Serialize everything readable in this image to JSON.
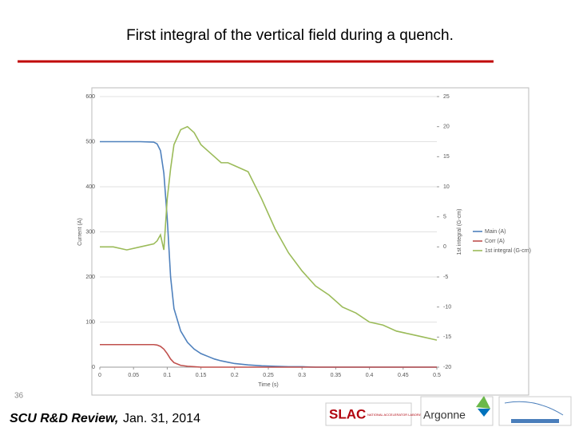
{
  "slide": {
    "title": "First integral of the vertical field during a quench.",
    "page_number": "36",
    "footer_label": "SCU R&D Review,",
    "footer_date": "Jan. 31, 2014",
    "logos": [
      "SLAC",
      "NATIONAL ACCELERATOR LABORATORY",
      "Argonne"
    ]
  },
  "chart_data": {
    "type": "line",
    "x_label": "Time (s)",
    "y_label": "Current (A)",
    "y2_label": "1st integral (G-cm)",
    "x": [
      0,
      0.02,
      0.04,
      0.06,
      0.08,
      0.085,
      0.09,
      0.095,
      0.1,
      0.105,
      0.11,
      0.12,
      0.13,
      0.14,
      0.15,
      0.16,
      0.17,
      0.18,
      0.19,
      0.2,
      0.22,
      0.24,
      0.26,
      0.28,
      0.3,
      0.32,
      0.34,
      0.36,
      0.38,
      0.4,
      0.42,
      0.44,
      0.46,
      0.48,
      0.5
    ],
    "series": [
      {
        "name": "Main (A)",
        "color": "#4f81bd",
        "axis": "y",
        "values": [
          500,
          500,
          500,
          500,
          499,
          495,
          480,
          430,
          330,
          200,
          130,
          80,
          55,
          40,
          30,
          24,
          18,
          14,
          11,
          8,
          5,
          3,
          2,
          1,
          1,
          0,
          0,
          0,
          0,
          0,
          0,
          0,
          0,
          0,
          0
        ]
      },
      {
        "name": "Corr (A)",
        "color": "#c0504d",
        "axis": "y",
        "values": [
          50,
          50,
          50,
          50,
          50,
          49,
          46,
          40,
          30,
          18,
          10,
          4,
          2,
          1,
          0,
          0,
          0,
          0,
          0,
          0,
          0,
          0,
          0,
          0,
          0,
          0,
          0,
          0,
          0,
          0,
          0,
          0,
          0,
          0,
          0
        ]
      },
      {
        "name": "1st integral (G-cm)",
        "color": "#9bbb59",
        "axis": "y2",
        "values": [
          0,
          0,
          -0.5,
          0,
          0.5,
          1,
          2,
          -0.5,
          8,
          13,
          17,
          19.5,
          20,
          19,
          17,
          16,
          15,
          14,
          14,
          13.5,
          12.5,
          8,
          3,
          -1,
          -4,
          -6.5,
          -8,
          -10,
          -11,
          -12.5,
          -13,
          -14,
          -14.5,
          -15,
          -15.5
        ]
      }
    ],
    "xlim": [
      0,
      0.5
    ],
    "xticks": [
      0,
      0.05,
      0.1,
      0.15,
      0.2,
      0.25,
      0.3,
      0.35,
      0.4,
      0.45,
      0.5
    ],
    "ylim": [
      0,
      600
    ],
    "yticks": [
      0,
      100,
      200,
      300,
      400,
      500,
      600
    ],
    "y2lim": [
      -20,
      25
    ],
    "y2ticks": [
      -20,
      -15,
      -10,
      -5,
      0,
      5,
      10,
      15,
      20,
      25
    ],
    "grid": true,
    "legend": "right"
  }
}
